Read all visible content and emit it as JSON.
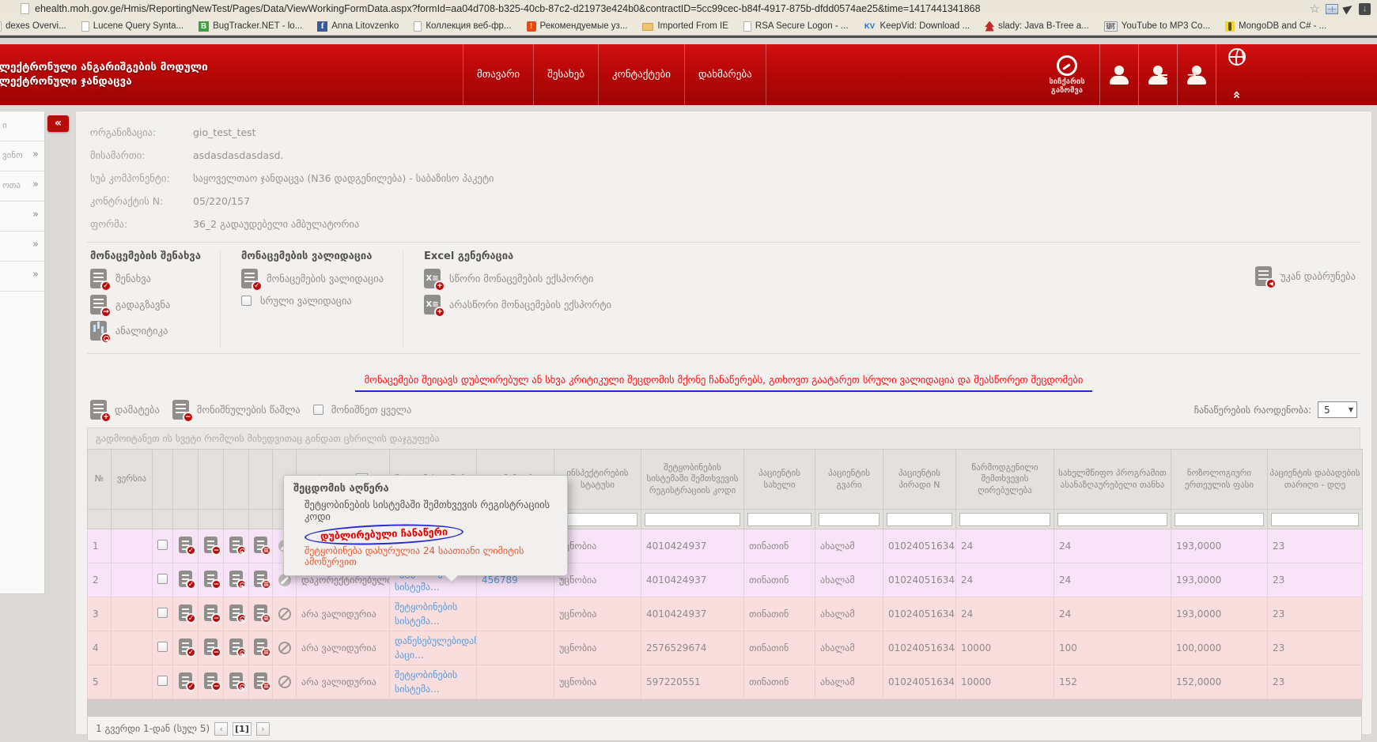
{
  "browser": {
    "url": "ehealth.moh.gov.ge/Hmis/ReportingNewTest/Pages/Data/ViewWorkingFormData.aspx?formId=aa04d708-b325-40cb-87c2-d21973e424b0&contractID=5cc99cec-b84f-4917-875b-dfdd0574ae25&time=1417441341868",
    "bookmarks": [
      {
        "label": "dexes Overvi...",
        "icon": "page",
        "glyph": ""
      },
      {
        "label": "Lucene Query Synta...",
        "icon": "page",
        "glyph": ""
      },
      {
        "label": "BugTracker.NET - lo...",
        "icon": "bug",
        "glyph": "B"
      },
      {
        "label": "Anna Litovzenko",
        "icon": "facebook",
        "glyph": "f"
      },
      {
        "label": "Коллекция веб-фр...",
        "icon": "page",
        "glyph": ""
      },
      {
        "label": "Рекомендуемые уз...",
        "icon": "alert",
        "glyph": "!"
      },
      {
        "label": "Imported From IE",
        "icon": "folder",
        "glyph": ""
      },
      {
        "label": "RSA Secure Logon - ...",
        "icon": "page",
        "glyph": ""
      },
      {
        "label": "KeepVid: Download ...",
        "icon": "kv",
        "glyph": "KV"
      },
      {
        "label": "slady: Java B-Tree a...",
        "icon": "tree",
        "glyph": ""
      },
      {
        "label": "YouTube to MP3 Co...",
        "icon": "mp3",
        "glyph": "SNIP MP3"
      },
      {
        "label": "MongoDB and C# - ...",
        "icon": "mongo",
        "glyph": ""
      }
    ]
  },
  "app_header": {
    "title_line1": "ელექტრონული ანგარიშგების მოდული",
    "title_line2": "ელექტრონული ჯანდაცვა",
    "nav": [
      {
        "label": "მთავარი"
      },
      {
        "label": "შესახებ"
      },
      {
        "label": "კონტაქტები"
      },
      {
        "label": "დახმარება"
      }
    ],
    "speed_test_label": "სიჩქარის გაზომვა",
    "collapse_glyph": "«",
    "logout_glyph": "→"
  },
  "sidebar": {
    "items": [
      {
        "label": "ი",
        "chevron": ""
      },
      {
        "label": "ვინო",
        "chevron": "»"
      },
      {
        "label": "ოთა",
        "chevron": "»"
      },
      {
        "label": "",
        "chevron": "»"
      },
      {
        "label": "",
        "chevron": "»"
      },
      {
        "label": "",
        "chevron": "»"
      }
    ]
  },
  "details": {
    "rows": [
      {
        "label": "ორგანიზაცია:",
        "value": "gio_test_test"
      },
      {
        "label": "მისამართი:",
        "value": "asdasdasdasdasd."
      },
      {
        "label": "სუბ კომპონენტი:",
        "value": "საყოველთაო ჯანდაცვა (N36 დადგენილება) - საბაზისო პაკეტი"
      },
      {
        "label": "კონტრაქტის N:",
        "value": "05/220/157"
      },
      {
        "label": "ფორმა:",
        "value": "36_2 გადაუდებელი ამბულატორია"
      }
    ]
  },
  "actions": {
    "groups": [
      {
        "title": "მონაცემების შენახვა",
        "items": [
          {
            "label": "შენახვა",
            "icon": "doc-check"
          },
          {
            "label": "გადაგზავნა",
            "icon": "doc-send"
          },
          {
            "label": "ანალიტიკა",
            "icon": "doc-analytics"
          }
        ]
      },
      {
        "title": "მონაცემების ვალიდაცია",
        "items": [
          {
            "label": "მონაცემების ვალიდაცია",
            "icon": "doc-check"
          },
          {
            "label": "სრული ვალიდაცია",
            "icon": "checkbox"
          }
        ]
      },
      {
        "title": "Excel გენერაცია",
        "items": [
          {
            "label": "სწორი მონაცემების ექსპორტი",
            "icon": "excel-plus"
          },
          {
            "label": "არასწორი მონაცემების ექსპორტი",
            "icon": "excel-plus"
          }
        ]
      }
    ],
    "back_label": "უკან დაბრუნება"
  },
  "warning": {
    "text": "მონაცემები შეიცავს დუბლირებულ ან სხვა კრიტიკული შეცდომის მქონე ჩანაწერებს, გთხოვთ გაატარეთ სრული ვალიდაცია და შეასწორეთ შეცდომები"
  },
  "toolbar": {
    "add_label": "დამატება",
    "delete_selected_label": "მონიშნულების წაშლა",
    "select_all_label": "მონიშნეთ ყველა",
    "records_label": "ჩანაწერების რაოდენობა:",
    "records_value": "5"
  },
  "grid": {
    "group_hint": "გადმოიტანეთ ის სვეტი რომლის მიხედვითაც გინდათ ცხრილის დაჯგუფება",
    "headers": [
      "№",
      "ვერსია",
      "სტატუსი",
      "შეცდომის აღწერა",
      "კომენტარი",
      "ინსპექტირების სტატუსი",
      "შეტყობინების სისტემაში შემთხვევის რეგისტრაციის კოდი",
      "პაციენტის სახელი",
      "პაციენტის გვარი",
      "პაციენტის პირადი N",
      "წარმოდგენილი შემთხვევის ღირებულება",
      "სახელმწიფო პროგრამით ასანაზღაურებელი თანხა",
      "ნოზოლოგიური ერთეულის ფასი",
      "პაციენტის დაბადების თარიღი - დღე"
    ],
    "rows": [
      {
        "num": "1",
        "status": "",
        "error_link": "შეტყობინების სისტემა...",
        "comment": "",
        "inspection_status": "უცნობია",
        "registration_code": "4010424937",
        "patient_first_name": "თინათინ",
        "patient_last_name": "ახალამ",
        "patient_personal_n": "01024051634",
        "case_value": "24",
        "reimbursable_amount": "24",
        "nosology_unit_price": "193,0000",
        "birth_day": "23",
        "tone": "lav",
        "flag": "pencil"
      },
      {
        "num": "2",
        "status": "დაკორექტირებულია",
        "error_link": "შეტყობინების სისტემა...",
        "comment": "456789",
        "inspection_status": "უცნობია",
        "registration_code": "4010424937",
        "patient_first_name": "თინათინ",
        "patient_last_name": "ახალამ",
        "patient_personal_n": "01024051634",
        "case_value": "24",
        "reimbursable_amount": "24",
        "nosology_unit_price": "193,0000",
        "birth_day": "23",
        "tone": "lav",
        "flag": "pencil"
      },
      {
        "num": "3",
        "status": "არა ვალიდურია",
        "error_link": "შეტყობინების სისტემა...",
        "comment": "",
        "inspection_status": "უცნობია",
        "registration_code": "4010424937",
        "patient_first_name": "თინათინ",
        "patient_last_name": "ახალამ",
        "patient_personal_n": "01024051634",
        "case_value": "24",
        "reimbursable_amount": "24",
        "nosology_unit_price": "193,0000",
        "birth_day": "23",
        "tone": "rose",
        "flag": "blocked"
      },
      {
        "num": "4",
        "status": "არა ვალიდურია",
        "error_link": "დაწესებულებიდან პაცი...",
        "comment": "",
        "inspection_status": "უცნობია",
        "registration_code": "2576529674",
        "patient_first_name": "თინათინ",
        "patient_last_name": "ახალამ",
        "patient_personal_n": "01024051634",
        "case_value": "10000",
        "reimbursable_amount": "100",
        "nosology_unit_price": "100,0000",
        "birth_day": "23",
        "tone": "rose",
        "flag": "blocked"
      },
      {
        "num": "5",
        "status": "არა ვალიდურია",
        "error_link": "შეტყობინების სისტემა...",
        "comment": "",
        "inspection_status": "უცნობია",
        "registration_code": "597220551",
        "patient_first_name": "თინათინ",
        "patient_last_name": "ახალამ",
        "patient_personal_n": "01024051634",
        "case_value": "10000",
        "reimbursable_amount": "152",
        "nosology_unit_price": "152,0000",
        "birth_day": "23",
        "tone": "rose",
        "flag": "blocked"
      }
    ],
    "pager": {
      "info": "1 გვერდი 1-დან (სულ 5)",
      "prev": "‹",
      "page": "[1]",
      "next": "›"
    }
  },
  "tooltip": {
    "title": "შეცდომის აღწერა",
    "line1": "შეტყობინების სისტემაში შემთხვევის რეგისტრაციის კოდი",
    "highlighted": "დუბლირებული ჩანაწერი",
    "line3": "შეტყობინება დახურულია 24 საათიანი ლიმიტის ამოწურვით"
  },
  "colors": {
    "accent_red": "#b50c0c",
    "link_blue": "#5b9bd5",
    "warning_red": "#fd0f0f",
    "ellipse_blue": "#2a2ad2",
    "row_lavender": "#f8e3f8",
    "row_rose": "#fadddd"
  }
}
